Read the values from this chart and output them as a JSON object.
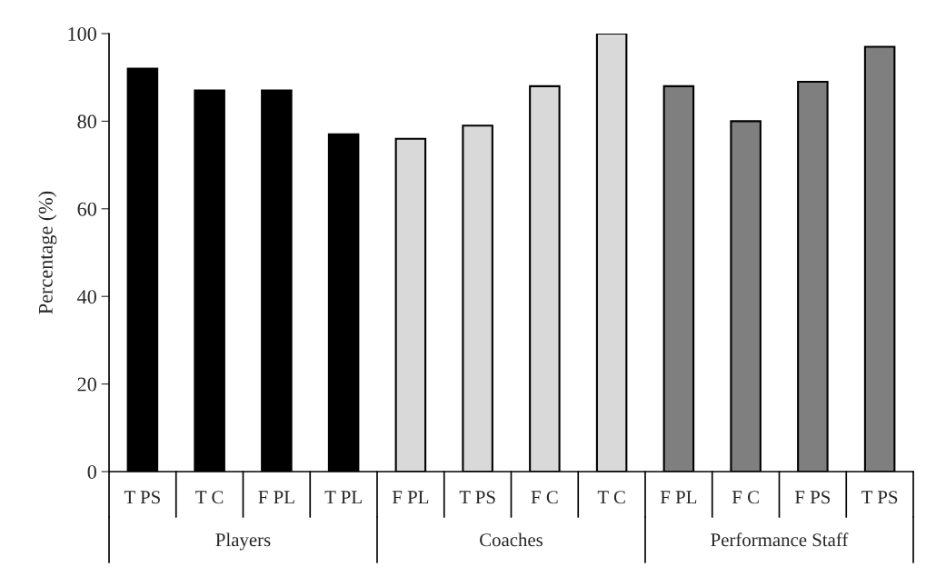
{
  "chart_data": {
    "type": "bar",
    "ylabel": "Percentage (%)",
    "categories": [
      "T PS",
      "T C",
      "F PL",
      "T PL",
      "F PL",
      "T PS",
      "F C",
      "T C",
      "F PL",
      "F C",
      "F PS",
      "T PS"
    ],
    "series": [
      {
        "color": "#000000",
        "values": [
          92,
          87,
          87,
          77,
          null,
          null,
          null,
          null,
          null,
          null,
          null,
          null
        ]
      },
      {
        "color": "#d9d9d9",
        "values": [
          null,
          null,
          null,
          null,
          76,
          79,
          88,
          100,
          null,
          null,
          null,
          null
        ]
      },
      {
        "color": "#7f7f7f",
        "values": [
          null,
          null,
          null,
          null,
          null,
          null,
          null,
          null,
          88,
          80,
          89,
          97
        ]
      }
    ],
    "annotations": [
      "Players",
      "Coaches",
      "Performance Staff"
    ],
    "ylim": [
      0,
      100
    ],
    "yticks": [
      0,
      20,
      40,
      60,
      80,
      100
    ],
    "grid": false,
    "legend": false
  }
}
